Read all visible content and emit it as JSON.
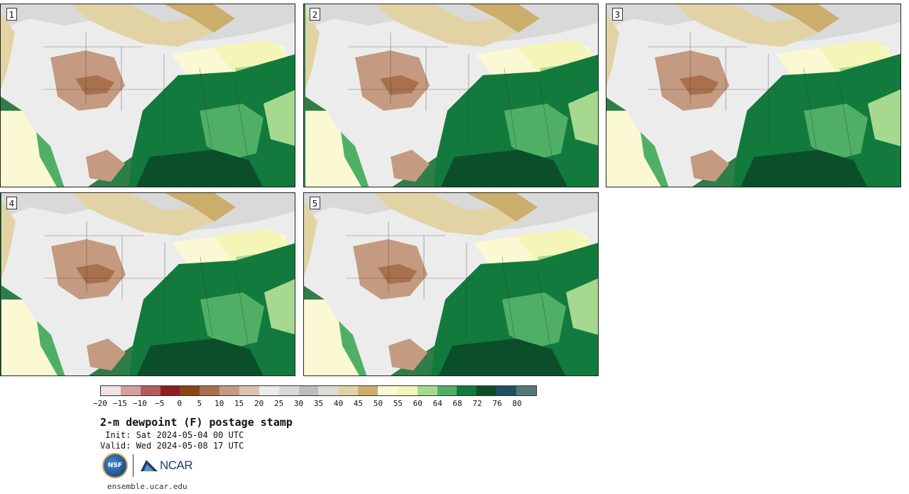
{
  "panels": [
    {
      "label": "1"
    },
    {
      "label": "2"
    },
    {
      "label": "3"
    },
    {
      "label": "4"
    },
    {
      "label": "5"
    }
  ],
  "legend": {
    "ticks": [
      "−20",
      "−15",
      "−10",
      "−5",
      "0",
      "5",
      "10",
      "15",
      "20",
      "25",
      "30",
      "35",
      "40",
      "45",
      "50",
      "55",
      "60",
      "64",
      "68",
      "72",
      "76",
      "80"
    ],
    "colors": [
      "#f1e3e3",
      "#d3a0a0",
      "#b55b5b",
      "#8f1d22",
      "#8b4513",
      "#a9704e",
      "#c49a80",
      "#dcc3b0",
      "#ececec",
      "#d9d9d9",
      "#bcbcbc",
      "#dcdcd8",
      "#e2d3a5",
      "#cbad6c",
      "#fbf9d3",
      "#f4f6b8",
      "#a6d98f",
      "#4fb065",
      "#127a3c",
      "#0b4f2a",
      "#1f5064",
      "#54787a"
    ]
  },
  "title": "2-m dewpoint (F) postage stamp",
  "init": " Init: Sat 2024-05-04 00 UTC",
  "valid": "Valid: Wed 2024-05-08 17 UTC",
  "logos": {
    "nsf": "NSF",
    "ncar": "NCAR"
  },
  "site": "ensemble.ucar.edu"
}
